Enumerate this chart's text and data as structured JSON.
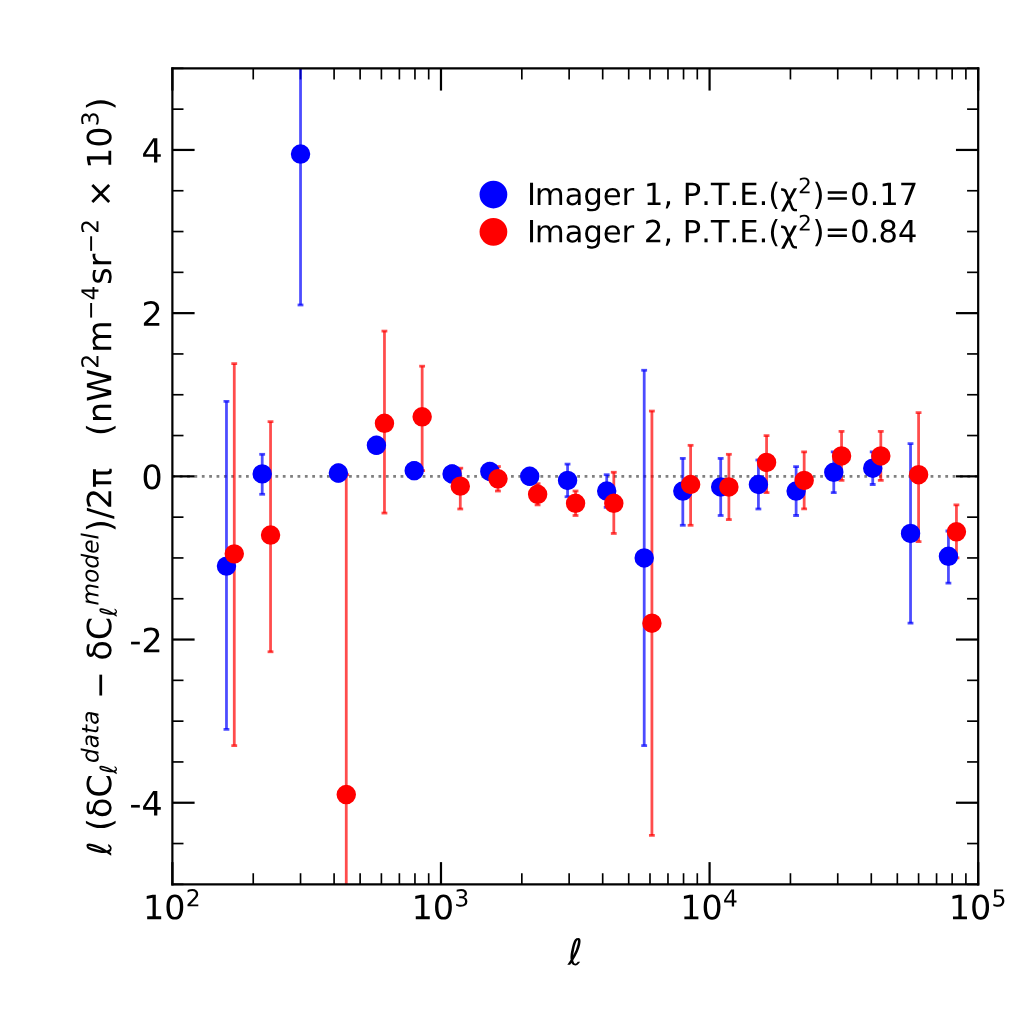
{
  "chart_data": {
    "type": "scatter",
    "xlabel": "ℓ",
    "ylabel": "ℓ (δC$_{ℓ}$$^{data}$ − δC$_{ℓ}$$^{model}$)/2π   (nW$^{2}$m$^{−4}$sr$^{−2}$ × 10$^{3}$)",
    "log": "x",
    "xlim": [
      100,
      100000
    ],
    "ylim": [
      -5,
      5
    ],
    "xticks": [
      {
        "value": 100,
        "label": "10$^{2}$"
      },
      {
        "value": 1000,
        "label": "10$^{3}$"
      },
      {
        "value": 10000,
        "label": "10$^{4}$"
      },
      {
        "value": 100000,
        "label": "10$^{5}$"
      }
    ],
    "yticks": [
      -4,
      -2,
      0,
      2,
      4
    ],
    "marker": "circle",
    "legend": "top right",
    "grid": false,
    "ref_lines": [
      {
        "axis": "y",
        "value": 0,
        "color": "#808080",
        "line_style": "dotted"
      }
    ],
    "series": [
      {
        "name": "Imager 1, P.T.E.(χ$^{2}$)=0.17",
        "color": "#0000ff",
        "x": [
          159,
          216,
          300,
          415,
          575,
          795,
          1100,
          1520,
          2140,
          2960,
          4140,
          5710,
          7950,
          11000,
          15200,
          21000,
          29000,
          40500,
          56000,
          77500
        ],
        "values": [
          -1.1,
          0.03,
          3.95,
          0.04,
          0.38,
          0.07,
          0.03,
          0.06,
          0.0,
          -0.05,
          -0.18,
          -1.0,
          -0.18,
          -0.13,
          -0.1,
          -0.18,
          0.05,
          0.1,
          -0.7,
          -0.98
        ],
        "errors": [
          [
            -3.1,
            0.92
          ],
          [
            -0.22,
            0.27
          ],
          [
            2.1,
            5.0
          ],
          [
            -0.06,
            0.14
          ],
          [
            0.28,
            0.48
          ],
          [
            -0.03,
            0.17
          ],
          [
            -0.07,
            0.13
          ],
          [
            -0.04,
            0.16
          ],
          [
            -0.1,
            0.1
          ],
          [
            -0.25,
            0.15
          ],
          [
            -0.38,
            0.02
          ],
          [
            -3.3,
            1.3
          ],
          [
            -0.6,
            0.22
          ],
          [
            -0.48,
            0.22
          ],
          [
            -0.4,
            0.2
          ],
          [
            -0.48,
            0.12
          ],
          [
            -0.2,
            0.3
          ],
          [
            -0.1,
            0.3
          ],
          [
            -1.8,
            0.4
          ],
          [
            -1.31,
            -0.67
          ]
        ]
      },
      {
        "name": "Imager 2, P.T.E.(χ$^{2}$)=0.84",
        "color": "#ff0000",
        "x": [
          170,
          232,
          321,
          444,
          616,
          851,
          1180,
          1630,
          2290,
          3170,
          4400,
          6100,
          8500,
          11800,
          16300,
          22500,
          31000,
          43400,
          60000,
          83000
        ],
        "values": [
          -0.95,
          -0.72,
          null,
          -3.9,
          0.65,
          0.73,
          -0.12,
          -0.03,
          -0.22,
          -0.33,
          -0.33,
          -1.8,
          -0.1,
          -0.13,
          0.17,
          -0.05,
          0.25,
          0.25,
          0.02,
          -0.68
        ],
        "errors": [
          [
            -3.3,
            1.38
          ],
          [
            -2.15,
            0.67
          ],
          null,
          [
            -5.0,
            0.02
          ],
          [
            -0.45,
            1.78
          ],
          [
            0.07,
            1.35
          ],
          [
            -0.4,
            0.1
          ],
          [
            -0.18,
            0.12
          ],
          [
            -0.35,
            -0.09
          ],
          [
            -0.48,
            -0.18
          ],
          [
            -0.7,
            0.05
          ],
          [
            -4.4,
            0.8
          ],
          [
            -0.6,
            0.38
          ],
          [
            -0.53,
            0.27
          ],
          [
            -0.2,
            0.5
          ],
          [
            -0.4,
            0.3
          ],
          [
            -0.05,
            0.55
          ],
          [
            -0.05,
            0.55
          ],
          [
            -0.8,
            0.78
          ],
          [
            -1.0,
            -0.35
          ]
        ]
      }
    ]
  }
}
